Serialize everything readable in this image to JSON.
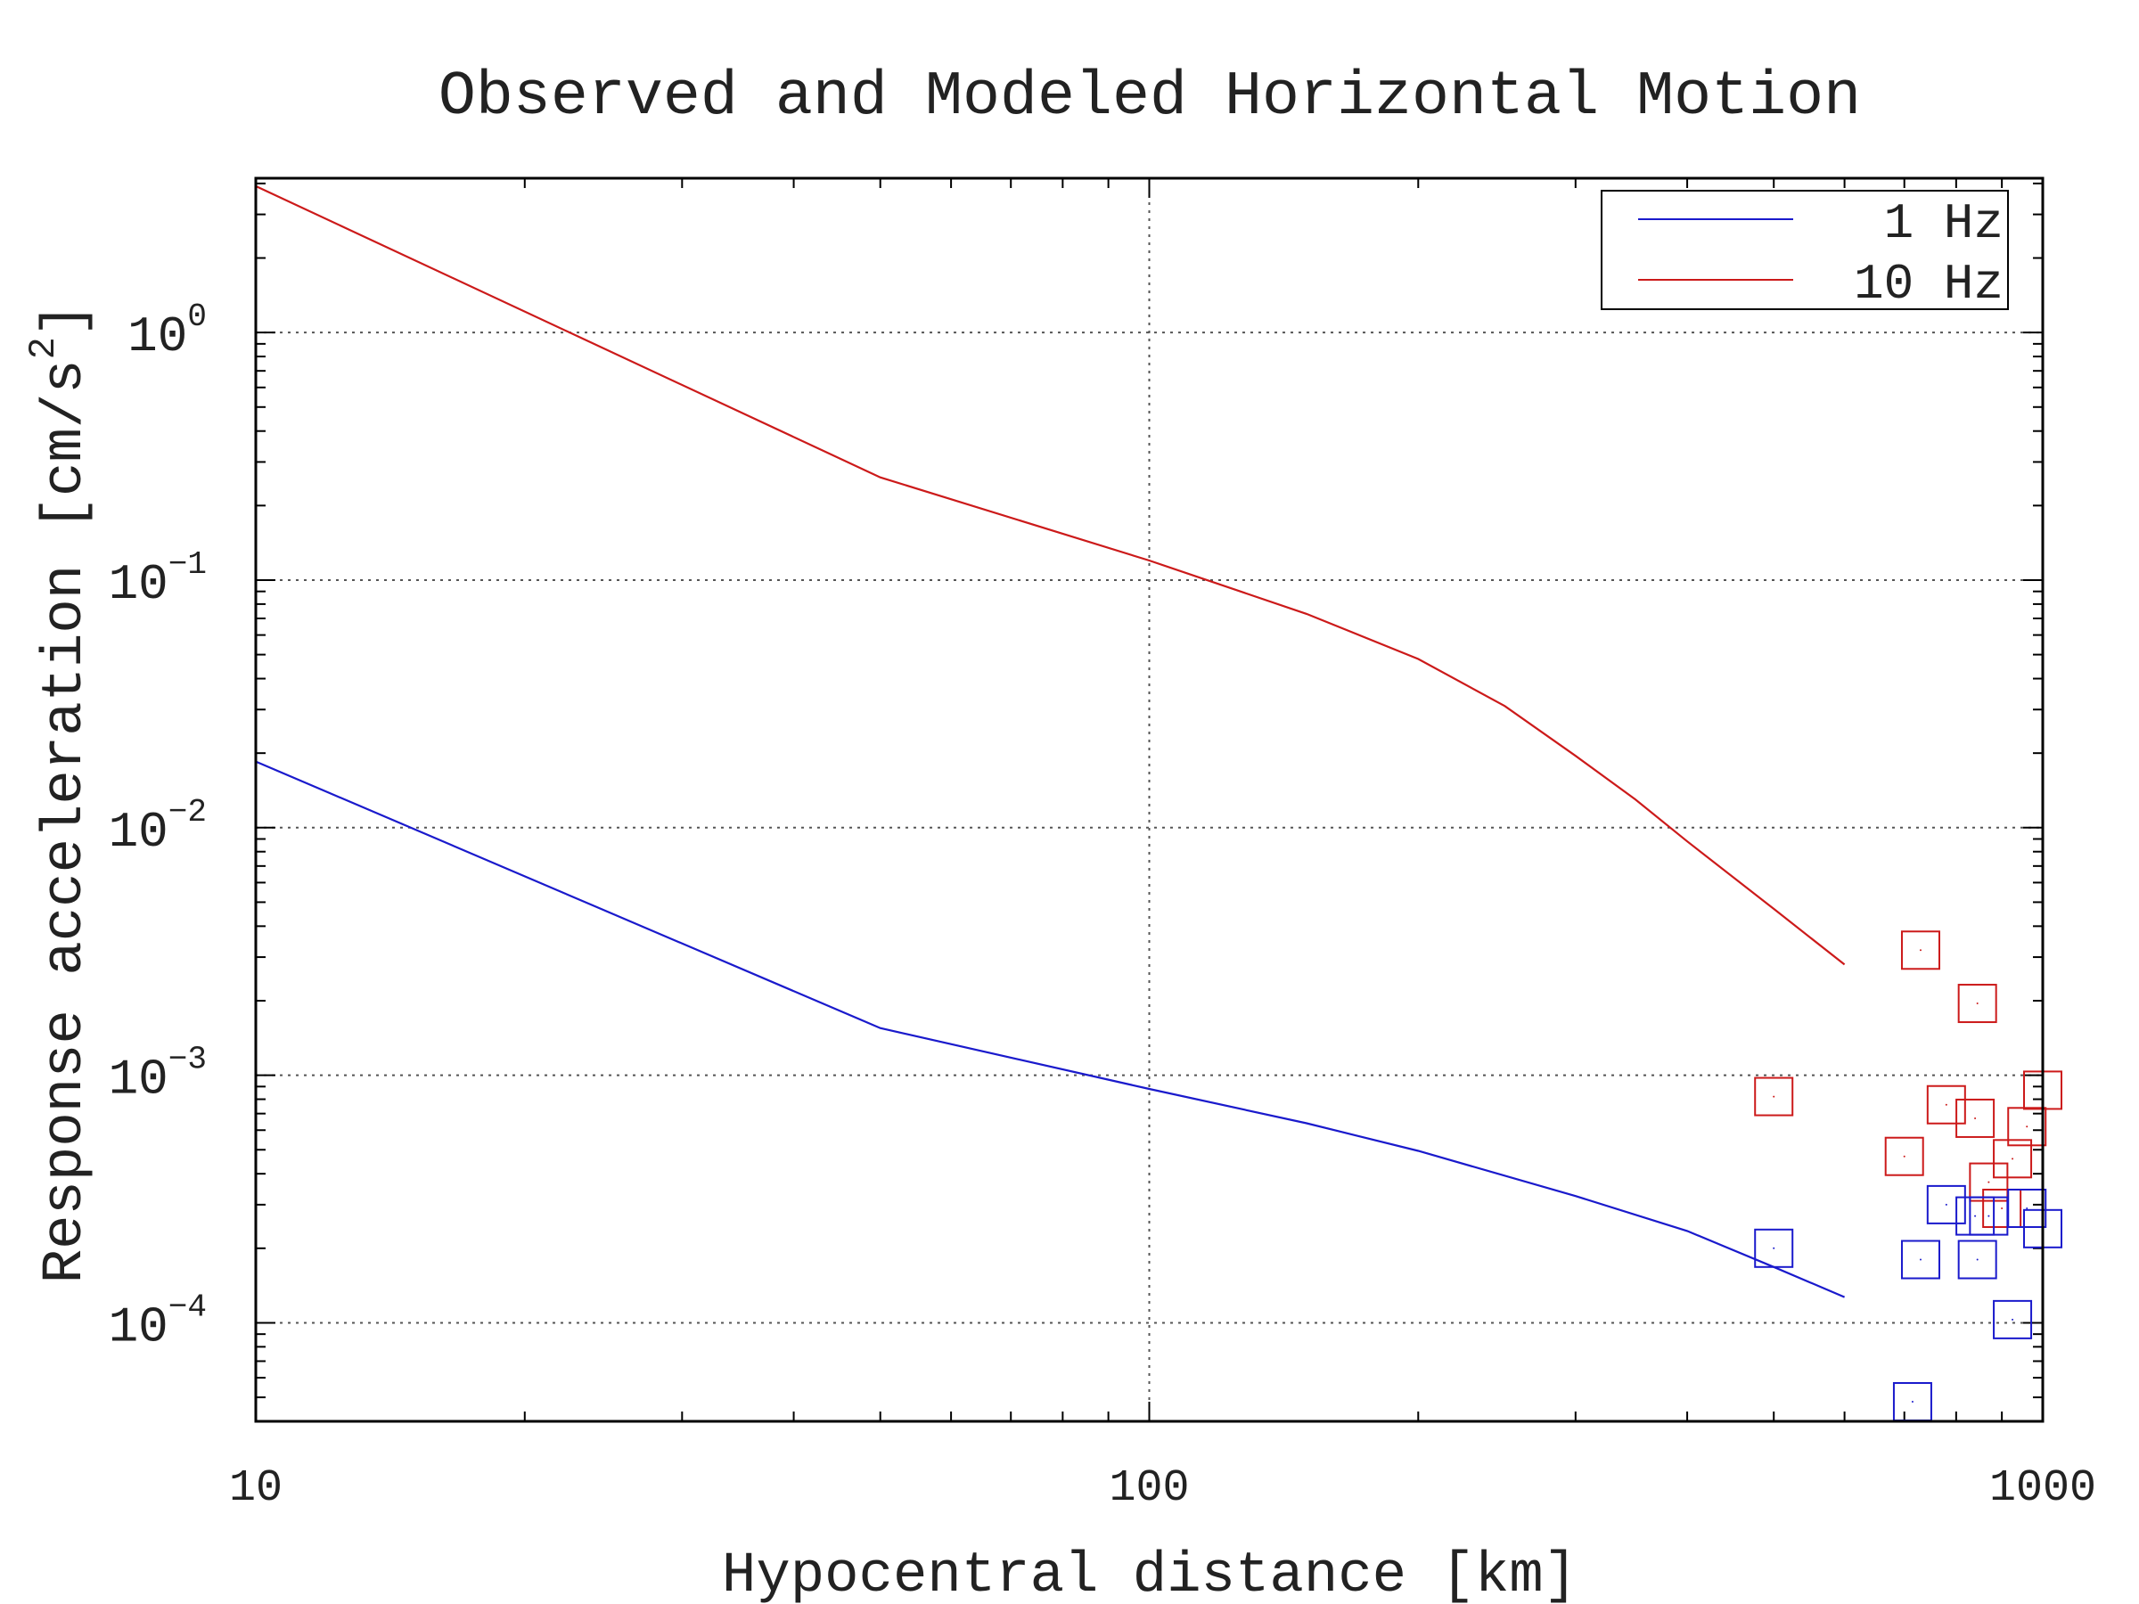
{
  "chart_data": {
    "type": "line",
    "title": "Observed and Modeled Horizontal Motion",
    "xlabel": "Hypocentral distance [km]",
    "ylabel_main": "Response acceleration [cm/s",
    "ylabel_sup": "2",
    "ylabel_close": "]",
    "xscale": "log",
    "yscale": "log",
    "xlim": [
      10,
      1000
    ],
    "ylim": [
      4e-05,
      4.2
    ],
    "grid": true,
    "legend_position": "top-right",
    "x_ticks": [
      {
        "value": 10,
        "label": "10"
      },
      {
        "value": 100,
        "label": "100"
      },
      {
        "value": 1000,
        "label": "1000"
      }
    ],
    "y_ticks": [
      {
        "value": 1,
        "base": "10",
        "exp": "0"
      },
      {
        "value": 0.1,
        "base": "10",
        "exp": "−1"
      },
      {
        "value": 0.01,
        "base": "10",
        "exp": "−2"
      },
      {
        "value": 0.001,
        "base": "10",
        "exp": "−3"
      },
      {
        "value": 0.0001,
        "base": "10",
        "exp": "−4"
      }
    ],
    "series": [
      {
        "name": "1 Hz",
        "color": "#1a1acc",
        "kind": "line",
        "x": [
          10,
          50,
          100,
          150,
          200,
          300,
          400,
          500,
          600
        ],
        "y": [
          0.0185,
          0.00155,
          0.00088,
          0.00064,
          0.000495,
          0.000325,
          0.000235,
          0.000168,
          0.000127
        ]
      },
      {
        "name": "10 Hz",
        "color": "#cc1a1a",
        "kind": "line",
        "x": [
          10,
          50,
          100,
          150,
          200,
          250,
          300,
          350,
          400,
          500,
          600
        ],
        "y": [
          3.9,
          0.26,
          0.12,
          0.073,
          0.048,
          0.031,
          0.0195,
          0.013,
          0.0088,
          0.0047,
          0.0028
        ]
      },
      {
        "color": "#cc1a1a",
        "kind": "scatter",
        "x": [
          500,
          730,
          845,
          1000,
          780,
          840,
          960,
          700,
          925,
          870,
          900
        ],
        "y": [
          0.00082,
          0.0032,
          0.00195,
          0.00087,
          0.00076,
          0.00067,
          0.00062,
          0.00047,
          0.00046,
          0.00037,
          0.00029
        ]
      },
      {
        "color": "#1a1acc",
        "kind": "scatter",
        "x": [
          500,
          780,
          840,
          960,
          870,
          1000,
          730,
          845,
          925,
          715
        ],
        "y": [
          0.0002,
          0.0003,
          0.00027,
          0.00029,
          0.00027,
          0.00024,
          0.00018,
          0.00018,
          0.000103,
          4.8e-05
        ]
      }
    ]
  }
}
